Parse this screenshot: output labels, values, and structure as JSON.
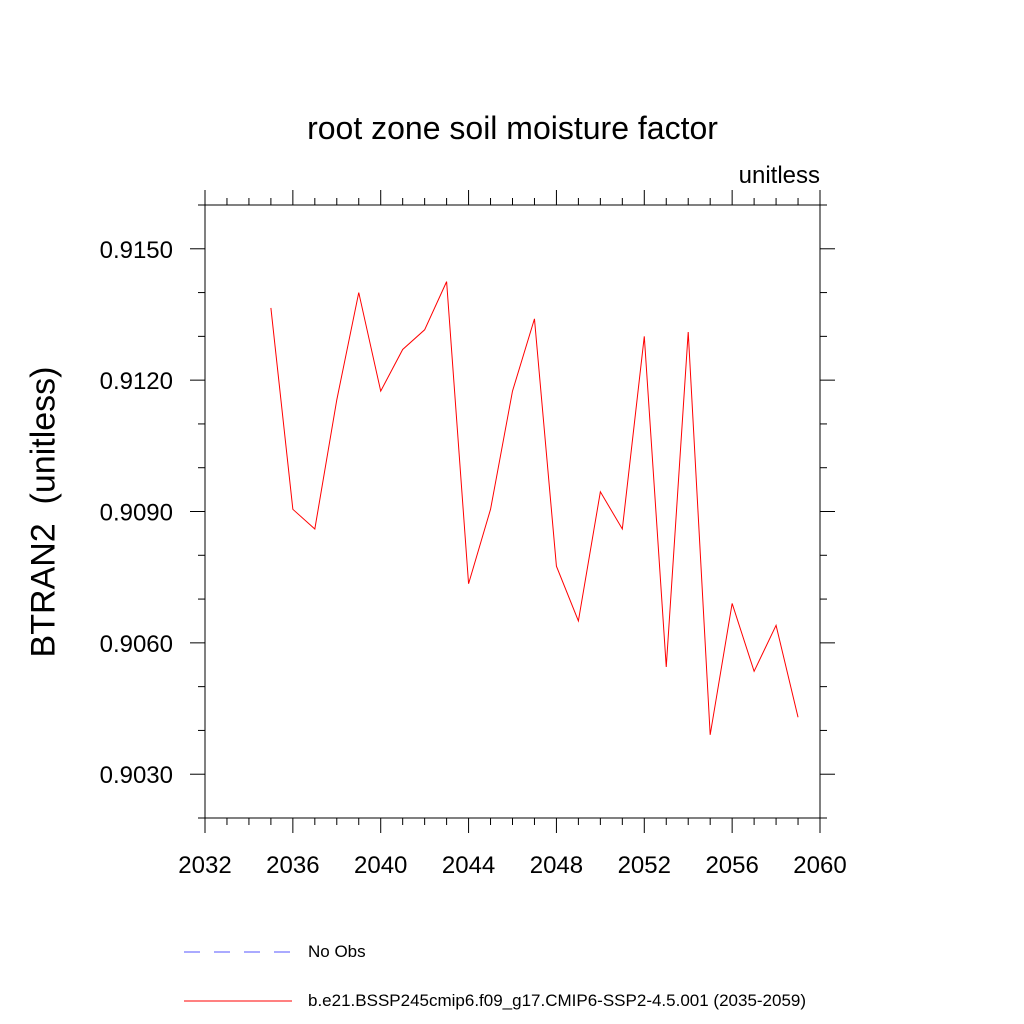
{
  "chart_data": {
    "type": "line",
    "title": "root zone soil moisture factor",
    "units_label": "unitless",
    "ylabel": "BTRAN2  (unitless)",
    "xlabel": "",
    "xlim": [
      2032,
      2060
    ],
    "ylim": [
      0.902,
      0.916
    ],
    "x_ticks": [
      2032,
      2036,
      2040,
      2044,
      2048,
      2052,
      2056,
      2060
    ],
    "x_tick_labels": [
      "2032",
      "2036",
      "2040",
      "2044",
      "2048",
      "2052",
      "2056",
      "2060"
    ],
    "x_minor_step": 1,
    "y_ticks": [
      0.903,
      0.906,
      0.909,
      0.912,
      0.915
    ],
    "y_tick_labels": [
      "0.9030",
      "0.9060",
      "0.9090",
      "0.9120",
      "0.9150"
    ],
    "y_minor_step": 0.001,
    "grid": false,
    "legend_position": "bottom",
    "series": [
      {
        "name": "b.e21.BSSP245cmip6.f09_g17.CMIP6-SSP2-4.5.001 (2035-2059)",
        "color": "#ff0000",
        "style": "solid",
        "x": [
          2035,
          2036,
          2037,
          2038,
          2039,
          2040,
          2041,
          2042,
          2043,
          2044,
          2045,
          2046,
          2047,
          2048,
          2049,
          2050,
          2051,
          2052,
          2053,
          2054,
          2055,
          2056,
          2057,
          2058,
          2059
        ],
        "values": [
          0.91365,
          0.90905,
          0.9086,
          0.91155,
          0.914,
          0.91175,
          0.9127,
          0.91315,
          0.91425,
          0.90735,
          0.90905,
          0.91175,
          0.9134,
          0.90775,
          0.9065,
          0.90945,
          0.9086,
          0.913,
          0.90545,
          0.9131,
          0.9039,
          0.9069,
          0.90535,
          0.9064,
          0.9043
        ]
      }
    ],
    "legend": [
      {
        "label": "No Obs",
        "color": "#5555ff",
        "style": "dashed"
      },
      {
        "label": "b.e21.BSSP245cmip6.f09_g17.CMIP6-SSP2-4.5.001 (2035-2059)",
        "color": "#ff0000",
        "style": "solid"
      }
    ]
  }
}
